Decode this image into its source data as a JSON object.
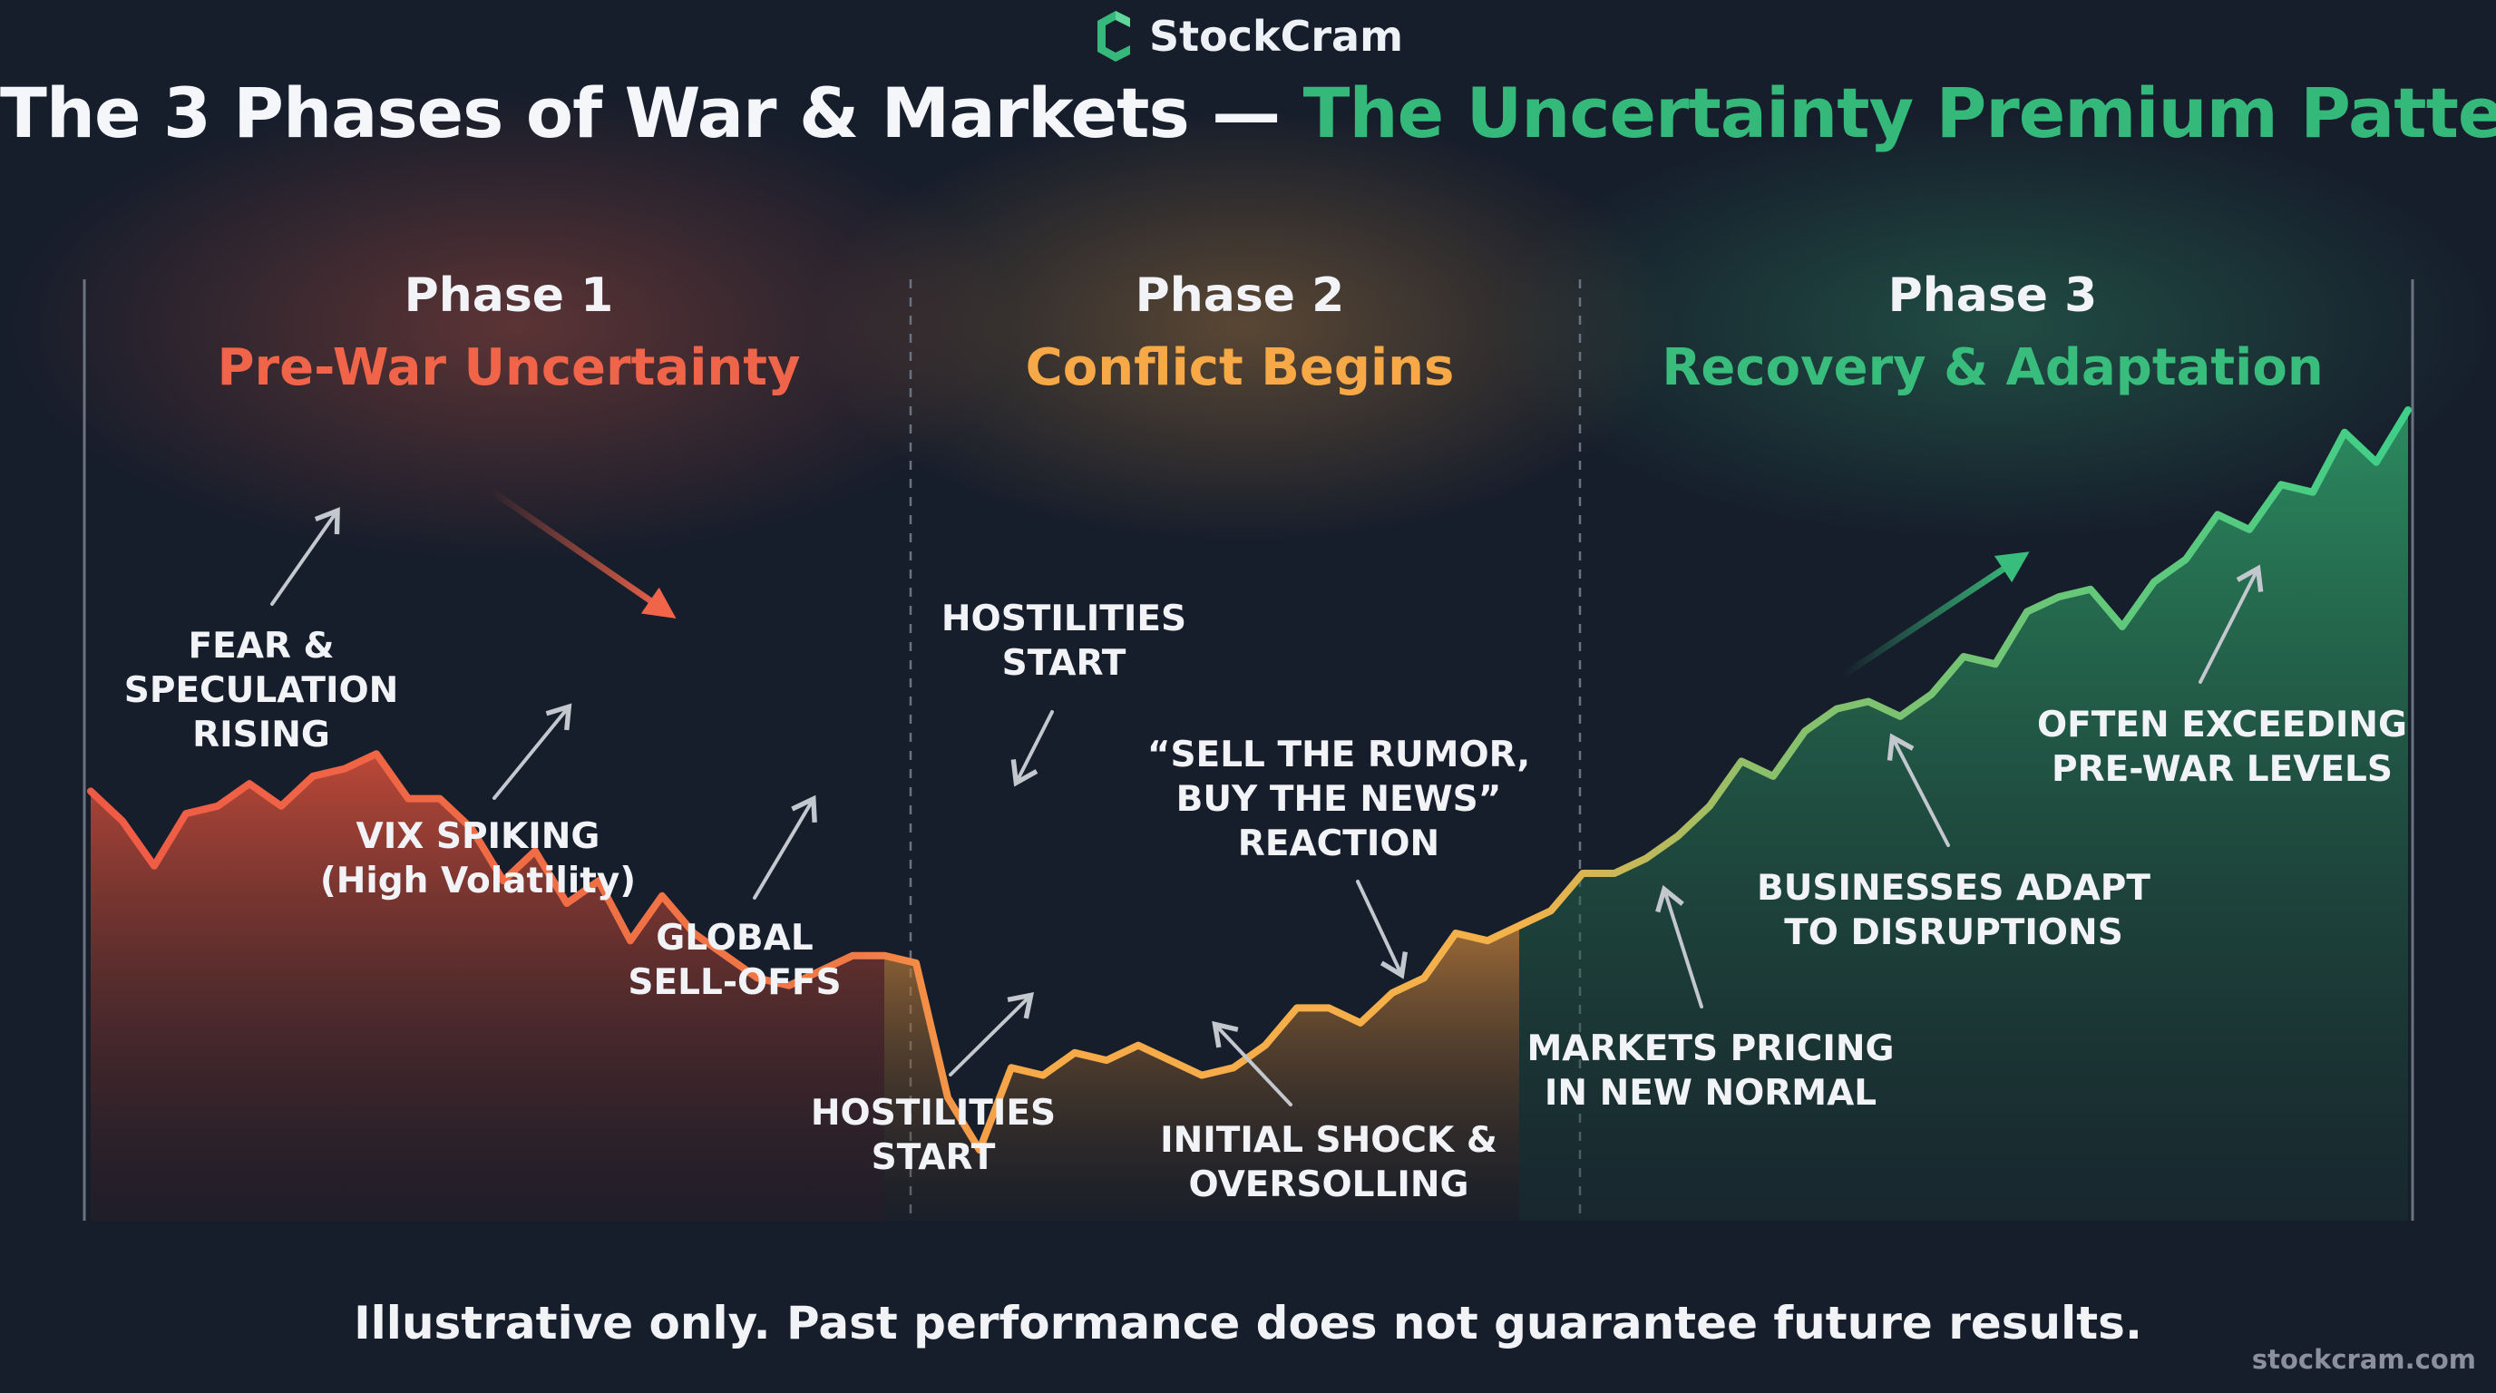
{
  "brand": {
    "name": "StockCram",
    "logo_icon": "stockcram-c-logo-icon",
    "accent": "#34b97a"
  },
  "title": {
    "main": "The 3 Phases of War & Markets",
    "separator": "—",
    "highlight": "The Uncertainty Premium Pattern"
  },
  "phases": [
    {
      "number": "Phase 1",
      "name": "Pre-War Uncertainty",
      "color": "#f06449"
    },
    {
      "number": "Phase 2",
      "name": "Conflict Begins",
      "color": "#f7a948"
    },
    {
      "number": "Phase 3",
      "name": "Recovery & Adaptation",
      "color": "#39bd7d"
    }
  ],
  "annotations": [
    {
      "lines": [
        "FEAR &",
        "SPECULATION",
        "RISING"
      ]
    },
    {
      "lines": [
        "VIX SPIKING",
        "(High Volatility)"
      ]
    },
    {
      "lines": [
        "GLOBAL",
        "SELL-OFFS"
      ]
    },
    {
      "lines": [
        "HOSTILITIES",
        "START"
      ]
    },
    {
      "lines": [
        "HOSTILITIES",
        "START"
      ]
    },
    {
      "lines": [
        "“SELL THE RUMOR,",
        "BUY THE NEWS”",
        "REACTION"
      ]
    },
    {
      "lines": [
        "INITIAL SHOCK &",
        "OVERSOLLING"
      ]
    },
    {
      "lines": [
        "MARKETS PRICING",
        "IN NEW NORMAL"
      ]
    },
    {
      "lines": [
        "BUSINESSES ADAPT",
        "TO DISRUPTIONS"
      ]
    },
    {
      "lines": [
        "OFTEN EXCEEDING",
        "PRE-WAR LEVELS"
      ]
    }
  ],
  "disclaimer": "Illustrative only. Past performance does not guarantee future results.",
  "site": "stockcram.com",
  "chart_data": {
    "type": "area",
    "x": [
      0,
      1,
      2,
      3,
      4,
      5,
      6,
      7,
      8,
      9,
      10,
      11,
      12,
      13,
      14,
      15,
      16,
      17,
      18,
      19,
      20,
      21,
      22,
      23,
      24,
      25,
      26,
      27,
      28,
      29,
      30,
      31,
      32,
      33,
      34,
      35,
      36,
      37,
      38,
      39,
      40,
      41,
      42,
      43,
      44,
      45,
      46,
      47,
      48,
      49,
      50,
      51,
      52,
      53,
      54,
      55,
      56,
      57,
      58,
      59,
      60,
      61,
      62,
      63,
      64,
      65,
      66,
      67,
      68,
      69,
      70,
      71,
      72,
      73
    ],
    "series": [
      {
        "values": [
          82,
          78,
          72,
          79,
          80,
          83,
          80,
          84,
          85,
          87,
          81,
          81,
          77,
          70,
          74,
          67,
          70,
          62,
          68,
          63,
          60,
          57,
          56,
          58,
          60,
          60,
          59,
          41,
          34,
          45,
          44,
          47,
          46,
          48,
          46,
          44,
          45,
          48,
          53,
          53,
          51,
          55,
          57,
          63,
          62,
          64,
          66,
          71,
          71,
          73,
          76,
          80,
          86,
          84,
          90,
          93,
          94,
          92,
          95,
          100,
          99,
          106,
          108,
          109,
          104,
          110,
          113,
          119,
          117,
          123,
          122,
          130,
          126,
          133
        ],
        "phase": [
          1,
          1,
          1,
          1,
          1,
          1,
          1,
          1,
          1,
          1,
          1,
          1,
          1,
          1,
          1,
          1,
          1,
          1,
          1,
          1,
          1,
          1,
          1,
          1,
          1,
          2,
          2,
          2,
          2,
          2,
          2,
          2,
          2,
          2,
          2,
          2,
          2,
          2,
          2,
          2,
          2,
          2,
          2,
          2,
          2,
          3,
          3,
          3,
          3,
          3,
          3,
          3,
          3,
          3,
          3,
          3,
          3,
          3,
          3,
          3,
          3,
          3,
          3,
          3,
          3,
          3,
          3,
          3,
          3,
          3,
          3,
          3,
          3,
          3
        ]
      }
    ],
    "phase_boundaries": [
      25,
      45
    ],
    "phase_colors": [
      "#f06449",
      "#f7a948",
      "#39bd7d"
    ],
    "ylim": [
      0,
      140
    ],
    "grid": false
  }
}
